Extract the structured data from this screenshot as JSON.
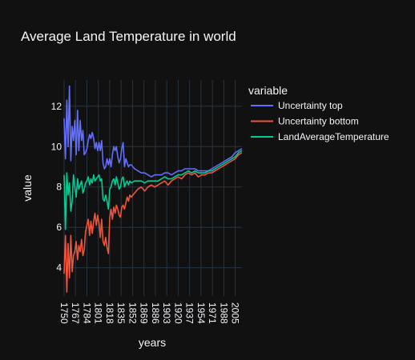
{
  "chart_data": {
    "type": "line",
    "title": "Average Land Temperature in world",
    "xlabel": "years",
    "ylabel": "value",
    "xlim": [
      1750,
      2015
    ],
    "ylim": [
      2.6,
      13.3
    ],
    "grid": true,
    "legend_title": "variable",
    "legend_position": "right",
    "x_ticks": [
      "1750",
      "1767",
      "1784",
      "1801",
      "1818",
      "1835",
      "1852",
      "1869",
      "1886",
      "1903",
      "1920",
      "1937",
      "1954",
      "1971",
      "1988",
      "2005"
    ],
    "y_ticks": [
      "4",
      "6",
      "8",
      "10",
      "12"
    ],
    "x": [
      1750,
      1752,
      1754,
      1756,
      1758,
      1760,
      1762,
      1764,
      1766,
      1768,
      1770,
      1772,
      1774,
      1776,
      1778,
      1780,
      1782,
      1784,
      1786,
      1788,
      1790,
      1792,
      1794,
      1796,
      1798,
      1800,
      1802,
      1804,
      1806,
      1808,
      1810,
      1812,
      1814,
      1816,
      1818,
      1820,
      1822,
      1824,
      1826,
      1828,
      1830,
      1832,
      1834,
      1836,
      1838,
      1840,
      1842,
      1844,
      1846,
      1848,
      1850,
      1855,
      1860,
      1865,
      1870,
      1875,
      1880,
      1885,
      1890,
      1895,
      1900,
      1905,
      1910,
      1915,
      1920,
      1925,
      1930,
      1935,
      1940,
      1945,
      1950,
      1955,
      1960,
      1965,
      1970,
      1975,
      1980,
      1985,
      1990,
      1995,
      2000,
      2005,
      2010,
      2015
    ],
    "series": [
      {
        "name": "Uncertainty top",
        "color": "#636efa",
        "values": [
          11.4,
          9.4,
          12.3,
          10.0,
          13.0,
          9.3,
          11.0,
          10.3,
          11.3,
          9.6,
          11.8,
          9.8,
          11.3,
          10.3,
          10.8,
          9.6,
          9.7,
          9.9,
          10.3,
          10.6,
          10.4,
          10.7,
          10.4,
          9.9,
          10.2,
          9.8,
          10.2,
          9.8,
          10.3,
          9.2,
          8.9,
          9.0,
          9.4,
          9.1,
          9.4,
          9.0,
          9.6,
          10.0,
          9.8,
          10.0,
          9.5,
          9.2,
          9.4,
          9.9,
          10.2,
          9.0,
          9.4,
          9.2,
          9.0,
          9.1,
          9.1,
          8.9,
          8.8,
          8.7,
          8.7,
          8.6,
          8.5,
          8.6,
          8.6,
          8.6,
          8.7,
          8.7,
          8.6,
          8.7,
          8.8,
          8.8,
          8.9,
          8.9,
          8.9,
          8.9,
          8.8,
          8.8,
          8.8,
          8.8,
          8.9,
          9.0,
          9.1,
          9.2,
          9.3,
          9.4,
          9.5,
          9.7,
          9.8,
          9.9
        ]
      },
      {
        "name": "Uncertainty bottom",
        "color": "#ef553b",
        "values": [
          3.7,
          5.6,
          2.8,
          5.2,
          3.5,
          5.6,
          3.8,
          4.6,
          4.8,
          5.3,
          4.4,
          5.1,
          4.8,
          5.4,
          4.6,
          4.9,
          5.8,
          6.1,
          6.4,
          5.6,
          6.3,
          5.7,
          6.3,
          6.7,
          6.1,
          6.6,
          6.2,
          5.5,
          6.4,
          5.3,
          5.1,
          5.5,
          5.0,
          4.7,
          6.5,
          6.9,
          6.4,
          7.0,
          6.7,
          7.1,
          6.9,
          6.6,
          6.5,
          7.0,
          7.1,
          6.9,
          7.2,
          7.5,
          7.3,
          7.6,
          7.5,
          7.7,
          7.9,
          8.0,
          7.8,
          8.0,
          8.1,
          8.0,
          8.1,
          8.2,
          8.3,
          8.1,
          8.3,
          8.4,
          8.5,
          8.4,
          8.6,
          8.7,
          8.6,
          8.7,
          8.5,
          8.6,
          8.6,
          8.7,
          8.7,
          8.8,
          8.9,
          9.0,
          9.1,
          9.2,
          9.3,
          9.4,
          9.6,
          9.7
        ]
      },
      {
        "name": "LandAverageTemperature",
        "color": "#00cc96",
        "values": [
          8.6,
          5.9,
          8.7,
          7.6,
          8.2,
          6.8,
          7.3,
          8.6,
          8.0,
          7.5,
          8.4,
          7.9,
          8.1,
          8.3,
          7.7,
          7.9,
          8.2,
          8.3,
          8.5,
          8.1,
          8.4,
          8.2,
          8.6,
          8.3,
          8.4,
          8.5,
          8.6,
          8.3,
          8.4,
          7.4,
          7.3,
          7.6,
          7.3,
          6.9,
          7.9,
          8.0,
          8.3,
          8.4,
          8.1,
          8.5,
          8.2,
          7.9,
          8.0,
          8.4,
          8.5,
          8.0,
          8.2,
          8.3,
          8.1,
          8.3,
          8.2,
          8.3,
          8.3,
          8.3,
          8.2,
          8.3,
          8.3,
          8.3,
          8.3,
          8.4,
          8.5,
          8.4,
          8.4,
          8.5,
          8.6,
          8.6,
          8.7,
          8.8,
          8.7,
          8.8,
          8.7,
          8.7,
          8.7,
          8.8,
          8.8,
          8.9,
          9.0,
          9.1,
          9.2,
          9.3,
          9.4,
          9.5,
          9.7,
          9.8
        ]
      }
    ]
  }
}
